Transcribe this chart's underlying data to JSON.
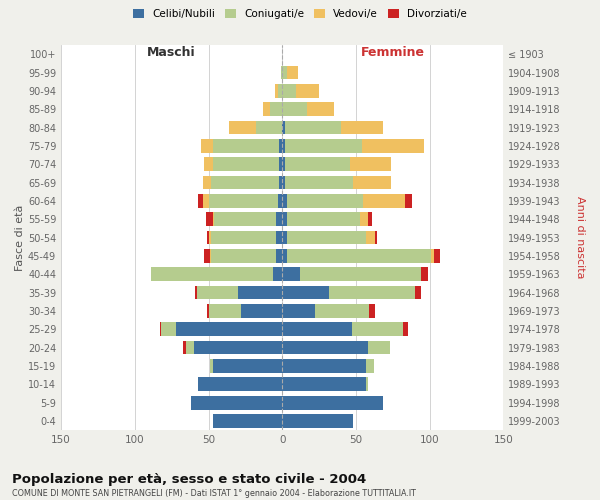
{
  "age_groups": [
    "100+",
    "95-99",
    "90-94",
    "85-89",
    "80-84",
    "75-79",
    "70-74",
    "65-69",
    "60-64",
    "55-59",
    "50-54",
    "45-49",
    "40-44",
    "35-39",
    "30-34",
    "25-29",
    "20-24",
    "15-19",
    "10-14",
    "5-9",
    "0-4"
  ],
  "birth_years": [
    "≤ 1903",
    "1904-1908",
    "1909-1913",
    "1914-1918",
    "1919-1923",
    "1924-1928",
    "1929-1933",
    "1934-1938",
    "1939-1943",
    "1944-1948",
    "1949-1953",
    "1954-1958",
    "1959-1963",
    "1964-1968",
    "1969-1973",
    "1974-1978",
    "1979-1983",
    "1984-1988",
    "1989-1993",
    "1994-1998",
    "1999-2003"
  ],
  "males": {
    "celibe": [
      0,
      0,
      0,
      0,
      0,
      2,
      2,
      2,
      3,
      4,
      4,
      4,
      6,
      30,
      28,
      72,
      60,
      47,
      57,
      62,
      47
    ],
    "coniugato": [
      0,
      1,
      3,
      8,
      18,
      45,
      45,
      46,
      47,
      42,
      44,
      44,
      83,
      28,
      22,
      10,
      5,
      2,
      0,
      0,
      0
    ],
    "vedovo": [
      0,
      0,
      2,
      5,
      18,
      8,
      6,
      6,
      4,
      1,
      2,
      1,
      0,
      0,
      0,
      0,
      0,
      0,
      0,
      0,
      0
    ],
    "divorziato": [
      0,
      0,
      0,
      0,
      0,
      0,
      0,
      0,
      3,
      5,
      1,
      4,
      0,
      1,
      1,
      1,
      2,
      0,
      0,
      0,
      0
    ]
  },
  "females": {
    "nubile": [
      0,
      0,
      0,
      0,
      2,
      2,
      2,
      2,
      3,
      3,
      3,
      3,
      12,
      32,
      22,
      47,
      58,
      57,
      57,
      68,
      48
    ],
    "coniugata": [
      0,
      3,
      9,
      17,
      38,
      52,
      44,
      46,
      52,
      50,
      54,
      98,
      82,
      58,
      37,
      35,
      15,
      5,
      1,
      0,
      0
    ],
    "vedova": [
      0,
      8,
      16,
      18,
      28,
      42,
      28,
      26,
      28,
      5,
      6,
      2,
      0,
      0,
      0,
      0,
      0,
      0,
      0,
      0,
      0
    ],
    "divorziata": [
      0,
      0,
      0,
      0,
      0,
      0,
      0,
      0,
      5,
      3,
      1,
      4,
      5,
      4,
      4,
      3,
      0,
      0,
      0,
      0,
      0
    ]
  },
  "colors": {
    "celibe": "#3d6fa0",
    "coniugato": "#b5cc8e",
    "vedovo": "#f0c060",
    "divorziato": "#cc2222"
  },
  "xlim": 150,
  "title": "Popolazione per età, sesso e stato civile - 2004",
  "subtitle": "COMUNE DI MONTE SAN PIETRANGELI (FM) - Dati ISTAT 1° gennaio 2004 - Elaborazione TUTTITALIA.IT",
  "ylabel_left": "Fasce di età",
  "ylabel_right": "Anni di nascita",
  "xlabel_maschi": "Maschi",
  "xlabel_femmine": "Femmine",
  "legend_labels": [
    "Celibi/Nubili",
    "Coniugati/e",
    "Vedovi/e",
    "Divorziati/e"
  ],
  "background_color": "#f0f0eb",
  "plot_background": "#ffffff"
}
